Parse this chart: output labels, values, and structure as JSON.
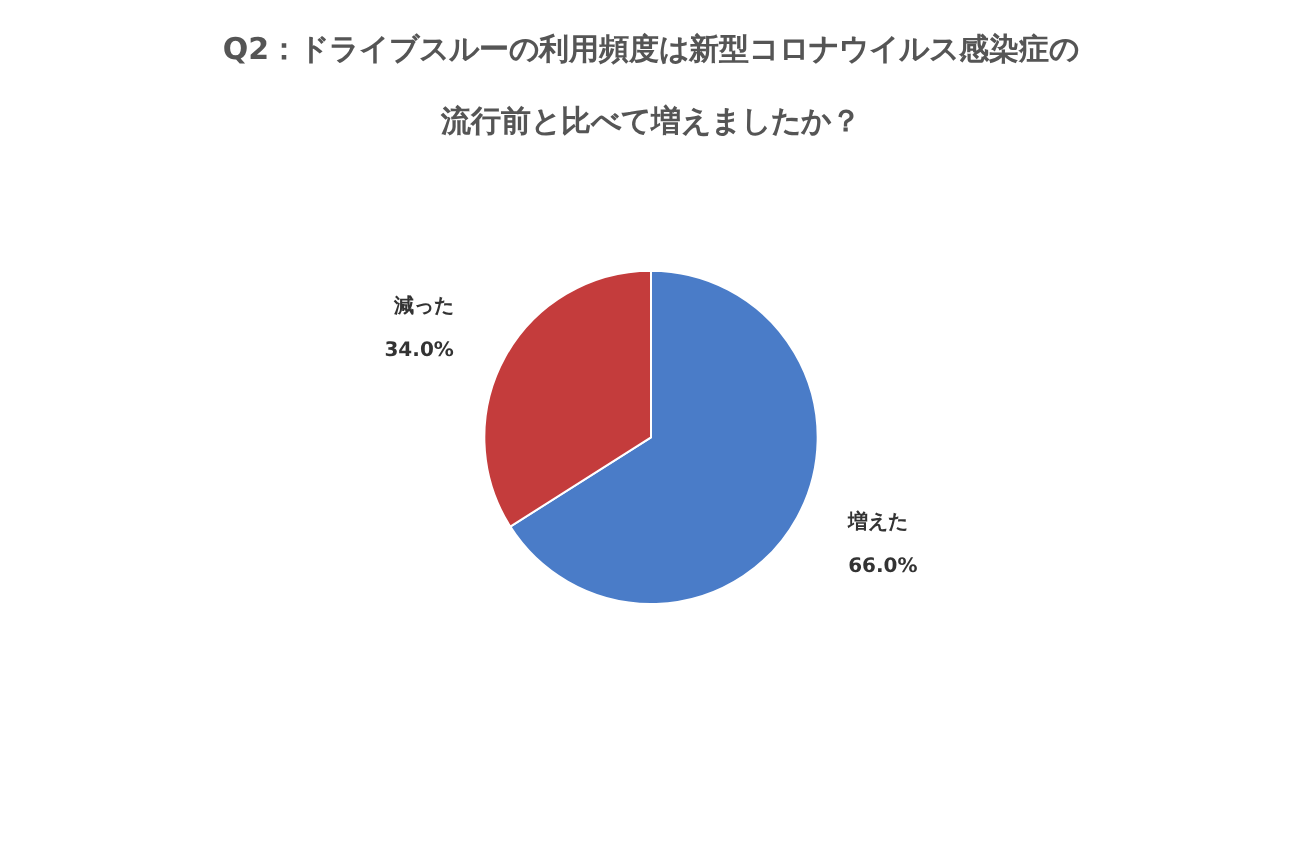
{
  "chart_data": {
    "type": "pie",
    "title": "Q2：ドライブスルーの利用頻度は新型コロナウイルス感染症の流行前と比べて増えましたか？",
    "categories": [
      "増えた",
      "減った"
    ],
    "values": [
      66.0,
      34.0
    ],
    "value_labels": [
      "66.0%",
      "34.0%"
    ],
    "colors": [
      "#4a7cc8",
      "#c43c3c"
    ]
  }
}
